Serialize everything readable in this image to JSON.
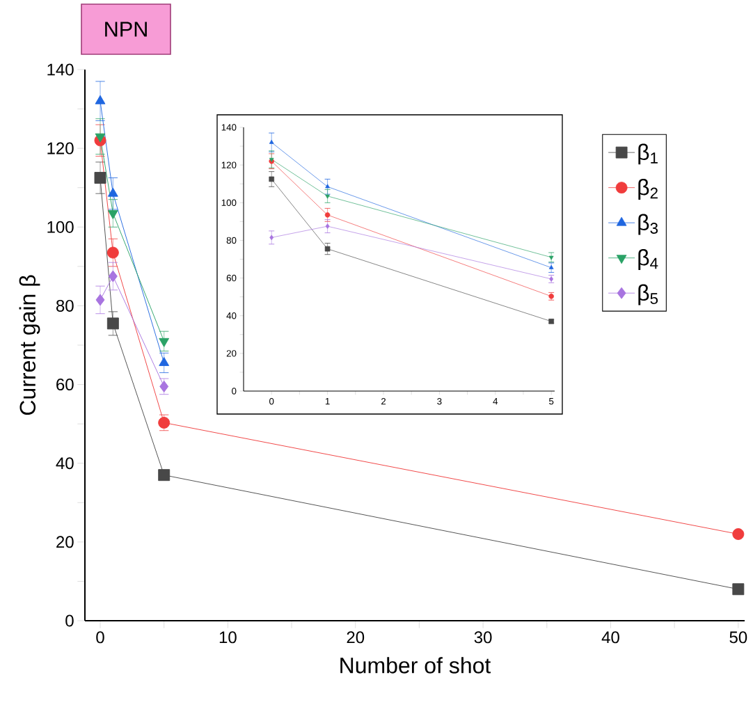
{
  "chart_data": [
    {
      "type": "line",
      "title": "NPN",
      "xlabel": "Number of shot",
      "ylabel": "Current gain β",
      "xlim": [
        -1.2,
        50.5
      ],
      "ylim": [
        0,
        140
      ],
      "xticks": [
        0,
        {
          "value": 5,
          "label": null
        },
        10,
        {
          "value": 15,
          "label": null
        },
        20,
        {
          "value": 25,
          "label": null
        },
        30,
        {
          "value": 35,
          "label": null
        },
        40,
        {
          "value": 45,
          "label": null
        },
        50
      ],
      "yticks": [
        0,
        {
          "value": 10,
          "label": null
        },
        20,
        {
          "value": 30,
          "label": null
        },
        40,
        {
          "value": 50,
          "label": null
        },
        60,
        {
          "value": 70,
          "label": null
        },
        80,
        {
          "value": 90,
          "label": null
        },
        100,
        {
          "value": 110,
          "label": null
        },
        120,
        {
          "value": 130,
          "label": null
        },
        140
      ],
      "legend": "top right",
      "grid": false,
      "series": [
        {
          "name": "β$_{1}$",
          "color": "#484848",
          "marker": "square",
          "x": [
            0,
            1,
            5,
            50
          ],
          "values": [
            112.5,
            75.5,
            37,
            8
          ],
          "errors": [
            4,
            3,
            1,
            null
          ]
        },
        {
          "name": "β$_{2}$",
          "color": "#f03c3c",
          "marker": "circle",
          "x": [
            0,
            1,
            5,
            50
          ],
          "values": [
            122,
            93.5,
            50.3,
            22
          ],
          "errors": [
            4,
            3.5,
            2,
            null
          ]
        },
        {
          "name": "β$_{3}$",
          "color": "#1f66e0",
          "marker": "triangle",
          "x": [
            0,
            1,
            5
          ],
          "values": [
            132,
            108.5,
            65.5
          ],
          "errors": [
            5,
            4,
            2.5
          ]
        },
        {
          "name": "β$_{4}$",
          "color": "#2aa266",
          "marker": "triangle-down",
          "x": [
            0,
            1,
            5
          ],
          "values": [
            123,
            103.5,
            71
          ],
          "errors": [
            4.5,
            3.5,
            2.5
          ]
        },
        {
          "name": "β$_{5}$",
          "color": "#a874e0",
          "marker": "diamond",
          "x": [
            0,
            1,
            5
          ],
          "values": [
            81.5,
            87.5,
            59.5
          ],
          "errors": [
            3.5,
            3.5,
            2
          ]
        }
      ]
    },
    {
      "type": "line",
      "xlim": [
        -0.5,
        5.06
      ],
      "ylim": [
        0,
        140
      ],
      "xticks": [
        0,
        {
          "value": 0.5,
          "label": null
        },
        1,
        {
          "value": 1.5,
          "label": null
        },
        2,
        {
          "value": 2.5,
          "label": null
        },
        3,
        {
          "value": 3.5,
          "label": null
        },
        4,
        {
          "value": 4.5,
          "label": null
        },
        5
      ],
      "yticks": [
        0,
        {
          "value": 10,
          "label": null
        },
        20,
        {
          "value": 30,
          "label": null
        },
        40,
        {
          "value": 50,
          "label": null
        },
        60,
        {
          "value": 70,
          "label": null
        },
        80,
        {
          "value": 90,
          "label": null
        },
        100,
        {
          "value": 110,
          "label": null
        },
        120,
        {
          "value": 130,
          "label": null
        },
        140
      ],
      "series": [
        {
          "color": "#484848",
          "marker": "square",
          "x": [
            0,
            1,
            5
          ],
          "values": [
            112.5,
            75.5,
            37
          ],
          "errors": [
            4,
            3,
            1
          ]
        },
        {
          "color": "#f03c3c",
          "marker": "circle",
          "x": [
            0,
            1,
            5
          ],
          "values": [
            122,
            93.5,
            50.3
          ],
          "errors": [
            4,
            3.5,
            2
          ]
        },
        {
          "color": "#1f66e0",
          "marker": "triangle",
          "x": [
            0,
            1,
            5
          ],
          "values": [
            132,
            108.5,
            65.5
          ],
          "errors": [
            5,
            4,
            2.5
          ]
        },
        {
          "color": "#2aa266",
          "marker": "triangle-down",
          "x": [
            0,
            1,
            5
          ],
          "values": [
            123,
            103.5,
            71
          ],
          "errors": [
            4.5,
            3.5,
            2.5
          ]
        },
        {
          "color": "#a874e0",
          "marker": "diamond",
          "x": [
            0,
            1,
            5
          ],
          "values": [
            81.5,
            87.5,
            59.5
          ],
          "errors": [
            3.5,
            3.5,
            2
          ]
        }
      ]
    }
  ]
}
